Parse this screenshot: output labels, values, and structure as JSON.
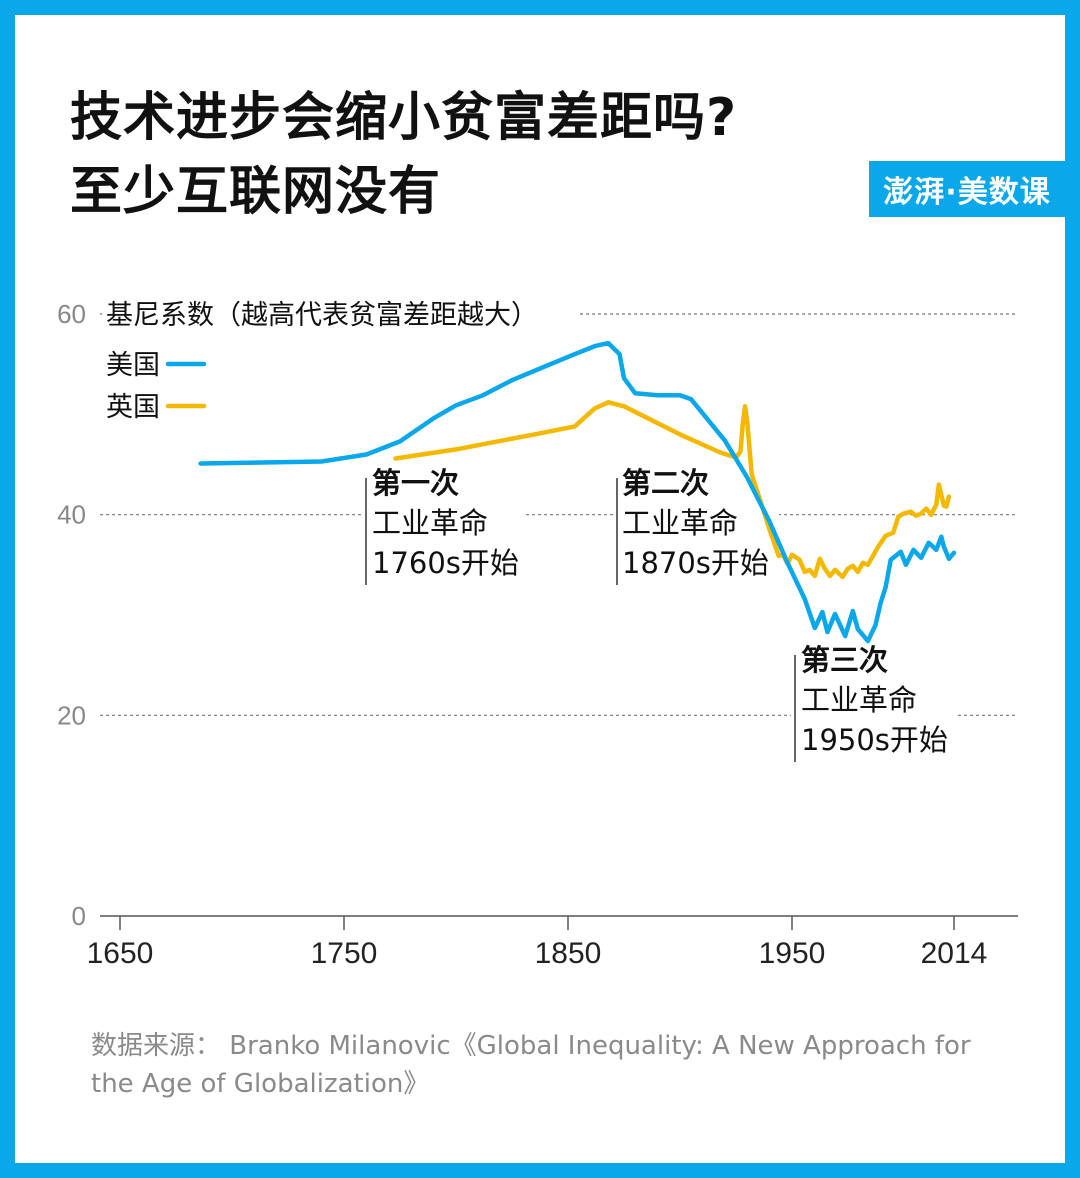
{
  "title": {
    "line1": "技术进步会缩小贫富差距吗?",
    "line2": "至少互联网没有"
  },
  "brand": "澎湃·美数课",
  "source": "数据来源：  Branko Milanovic《Global Inequality: A New Approach for the Age of Globalization》",
  "colors": {
    "background": "#0aa7ea",
    "us": "#0aa7ea",
    "uk": "#f5b800"
  },
  "chart_data": {
    "type": "line",
    "ylabel": "基尼系数（越高代表贫富差距越大）",
    "xticks": [
      "1650",
      "1750",
      "1850",
      "1950",
      "2014"
    ],
    "yticks": [
      "0",
      "20",
      "40",
      "60"
    ],
    "xlim": [
      1650,
      2040
    ],
    "ylim": [
      0,
      60
    ],
    "grid": true,
    "legend_position": "top-left",
    "series": [
      {
        "name": "美国",
        "color": "#0aa7ea",
        "points": [
          [
            1686,
            45.1
          ],
          [
            1740,
            45.3
          ],
          [
            1760,
            46.0
          ],
          [
            1775,
            47.3
          ],
          [
            1790,
            49.6
          ],
          [
            1800,
            50.9
          ],
          [
            1812,
            51.9
          ],
          [
            1825,
            53.4
          ],
          [
            1840,
            54.8
          ],
          [
            1852,
            55.9
          ],
          [
            1862,
            56.8
          ],
          [
            1868,
            57.1
          ],
          [
            1873,
            56.0
          ],
          [
            1875,
            53.6
          ],
          [
            1880,
            52.1
          ],
          [
            1890,
            51.9
          ],
          [
            1900,
            51.9
          ],
          [
            1905,
            51.5
          ],
          [
            1920,
            47.4
          ],
          [
            1930,
            43.7
          ],
          [
            1940,
            39.3
          ],
          [
            1948,
            35.2
          ],
          [
            1955,
            31.6
          ],
          [
            1959,
            28.7
          ],
          [
            1962,
            30.3
          ],
          [
            1964,
            28.3
          ],
          [
            1967,
            30.1
          ],
          [
            1971,
            27.9
          ],
          [
            1974,
            30.4
          ],
          [
            1976,
            28.6
          ],
          [
            1980,
            27.4
          ],
          [
            1983,
            29.0
          ],
          [
            1985,
            31.2
          ],
          [
            1987,
            32.8
          ],
          [
            1989,
            35.5
          ],
          [
            1993,
            36.3
          ],
          [
            1995,
            35.0
          ],
          [
            1998,
            36.5
          ],
          [
            2001,
            35.7
          ],
          [
            2004,
            37.2
          ],
          [
            2007,
            36.5
          ],
          [
            2009,
            37.8
          ],
          [
            2010,
            36.8
          ],
          [
            2012,
            35.6
          ],
          [
            2014,
            36.2
          ]
        ]
      },
      {
        "name": "英国",
        "color": "#f5b800",
        "points": [
          [
            1773,
            45.6
          ],
          [
            1800,
            46.5
          ],
          [
            1835,
            48.0
          ],
          [
            1853,
            48.8
          ],
          [
            1858,
            49.8
          ],
          [
            1862,
            50.6
          ],
          [
            1868,
            51.2
          ],
          [
            1875,
            50.8
          ],
          [
            1900,
            48.0
          ],
          [
            1918,
            46.2
          ],
          [
            1925,
            45.7
          ],
          [
            1927,
            46.3
          ],
          [
            1928,
            49.0
          ],
          [
            1929,
            50.8
          ],
          [
            1930,
            49.3
          ],
          [
            1932,
            44.0
          ],
          [
            1936,
            41.3
          ],
          [
            1940,
            38.5
          ],
          [
            1944,
            35.9
          ],
          [
            1946,
            36.0
          ],
          [
            1948,
            35.1
          ],
          [
            1950,
            36.0
          ],
          [
            1953,
            35.5
          ],
          [
            1955,
            34.3
          ],
          [
            1957,
            34.5
          ],
          [
            1959,
            33.9
          ],
          [
            1961,
            35.6
          ],
          [
            1963,
            34.6
          ],
          [
            1965,
            33.9
          ],
          [
            1967,
            34.5
          ],
          [
            1970,
            33.8
          ],
          [
            1972,
            34.6
          ],
          [
            1974,
            34.9
          ],
          [
            1976,
            34.3
          ],
          [
            1978,
            35.2
          ],
          [
            1980,
            35.0
          ],
          [
            1984,
            36.8
          ],
          [
            1987,
            37.9
          ],
          [
            1990,
            38.2
          ],
          [
            1992,
            39.8
          ],
          [
            1994,
            40.1
          ],
          [
            1997,
            40.3
          ],
          [
            1999,
            39.9
          ],
          [
            2001,
            40.1
          ],
          [
            2003,
            40.6
          ],
          [
            2005,
            40.0
          ],
          [
            2007,
            41.0
          ],
          [
            2008,
            43.0
          ],
          [
            2010,
            40.9
          ],
          [
            2011,
            40.8
          ],
          [
            2012,
            41.8
          ]
        ]
      }
    ],
    "annotations": [
      {
        "year": 1760,
        "lines": [
          "第一次",
          "工业革命",
          "1760s开始"
        ]
      },
      {
        "year": 1870,
        "lines": [
          "第二次",
          "工业革命",
          "1870s开始"
        ]
      },
      {
        "year": 1950,
        "lines": [
          "第三次",
          "工业革命",
          "1950s开始"
        ]
      }
    ]
  }
}
